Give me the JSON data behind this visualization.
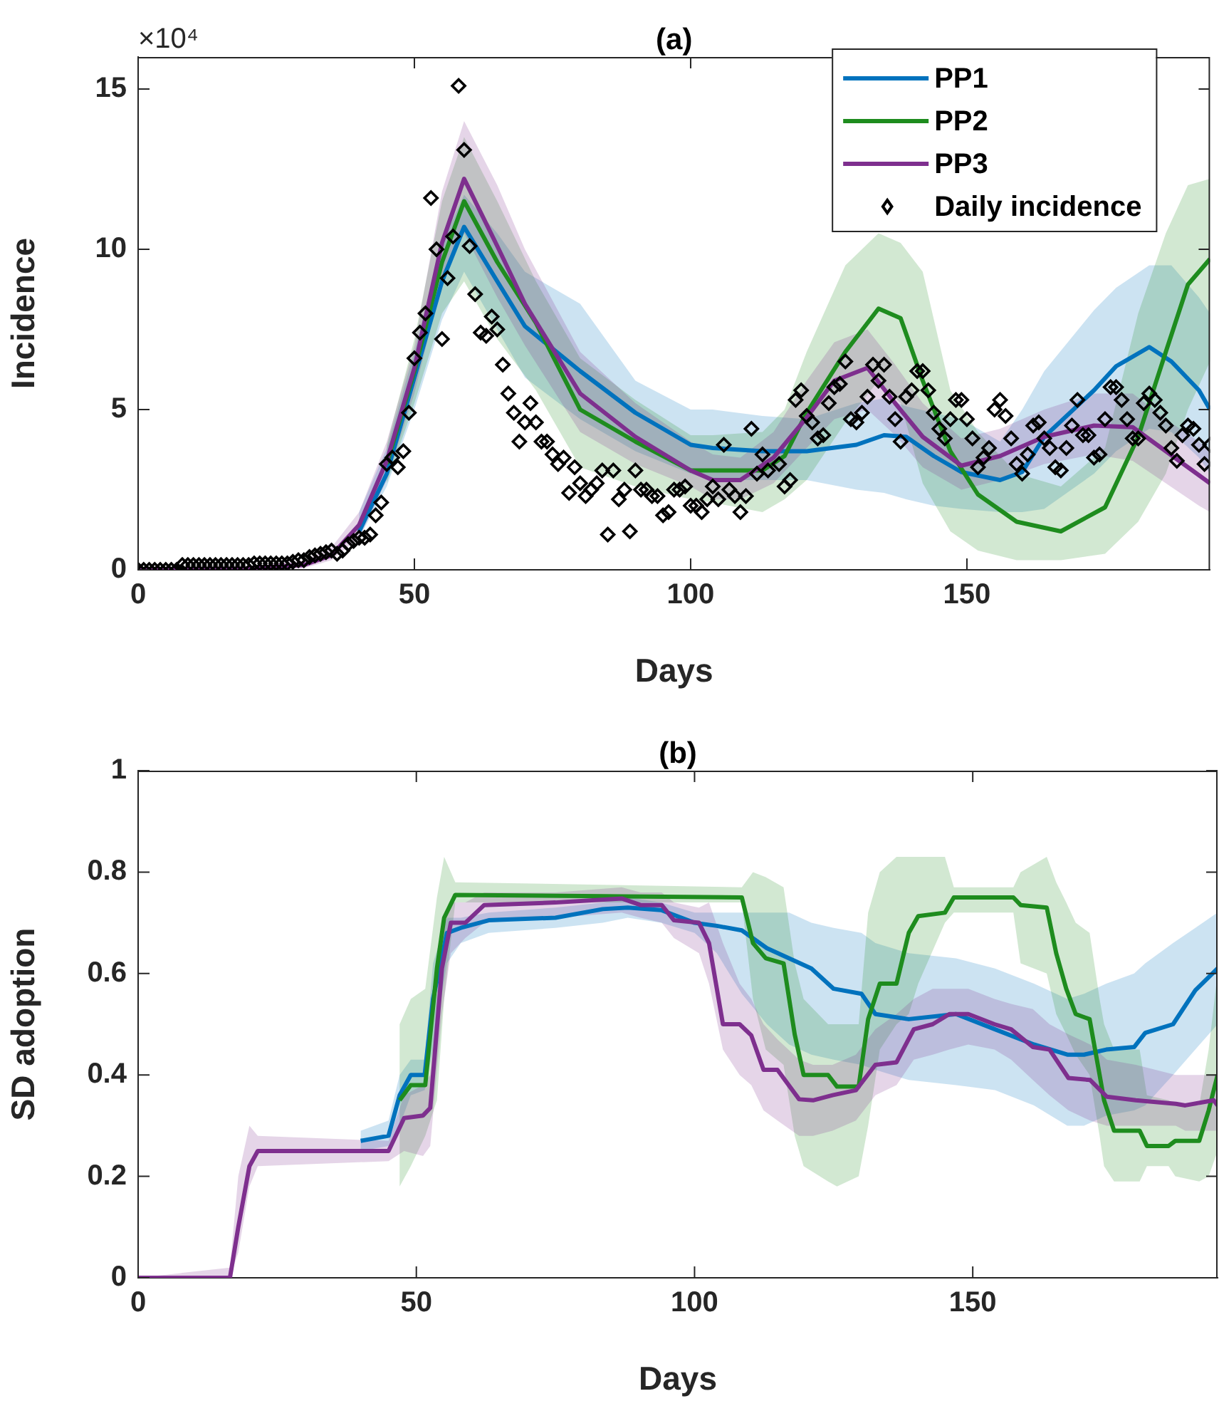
{
  "chart_data": [
    {
      "type": "line",
      "title": "(a)",
      "xlabel": "Days",
      "ylabel": "Incidence",
      "annotations": [
        "×10⁴"
      ],
      "legend": "top right",
      "xlim": [
        0,
        194
      ],
      "xticks": [
        0,
        50,
        100,
        150
      ],
      "ylim": [
        0,
        16
      ],
      "yticks": [
        0,
        5,
        10,
        15
      ],
      "series": [
        {
          "name": "PP1",
          "type": "line",
          "color": "#0072bd",
          "x": [
            40,
            45,
            50,
            55,
            59,
            65,
            70,
            80,
            90,
            100,
            104,
            113,
            121,
            130,
            135,
            139,
            144,
            149,
            156,
            160,
            164,
            173,
            177,
            183,
            187,
            192,
            194
          ],
          "values": [
            1.2,
            3.0,
            6.0,
            9.0,
            10.7,
            9.0,
            7.6,
            6.2,
            4.9,
            3.9,
            3.8,
            3.7,
            3.7,
            3.9,
            4.2,
            4.15,
            3.55,
            3.05,
            2.8,
            3.05,
            4.15,
            5.6,
            6.35,
            6.95,
            6.5,
            5.6,
            5.0
          ],
          "lower": [
            1.0,
            2.6,
            5.0,
            7.8,
            9.3,
            7.5,
            6.0,
            4.7,
            3.7,
            3.0,
            2.8,
            2.8,
            2.8,
            2.5,
            2.4,
            2.2,
            2.0,
            1.9,
            1.8,
            1.8,
            1.9,
            3.0,
            3.7,
            4.4,
            4.3,
            3.5,
            3.0
          ],
          "upper": [
            1.8,
            3.8,
            6.8,
            10.2,
            11.7,
            10.5,
            9.3,
            8.3,
            5.9,
            5.0,
            5.0,
            4.8,
            4.7,
            5.2,
            5.35,
            5.1,
            4.9,
            4.7,
            4.0,
            5.0,
            6.2,
            8.1,
            8.8,
            9.5,
            9.5,
            8.5,
            8.0
          ]
        },
        {
          "name": "PP2",
          "type": "line",
          "color": "#1e8c1e",
          "x": [
            45,
            50,
            55,
            59,
            65,
            72,
            80,
            90,
            100,
            104,
            113,
            117,
            121,
            128,
            134,
            138,
            142,
            147,
            152,
            159,
            167,
            175,
            181,
            186,
            190,
            194
          ],
          "values": [
            3.3,
            6.2,
            9.6,
            11.5,
            9.6,
            7.7,
            5.0,
            4.0,
            3.1,
            3.1,
            3.1,
            3.55,
            4.9,
            6.8,
            8.15,
            7.85,
            5.9,
            3.7,
            2.35,
            1.5,
            1.2,
            1.95,
            4.15,
            6.8,
            8.9,
            9.7
          ],
          "lower": [
            2.7,
            5.2,
            8.0,
            9.0,
            7.2,
            5.6,
            3.2,
            2.6,
            2.2,
            2.1,
            1.8,
            2.2,
            2.8,
            4.6,
            5.9,
            5.2,
            2.7,
            1.2,
            0.6,
            0.3,
            0.3,
            0.5,
            1.5,
            3.0,
            5.0,
            6.5
          ],
          "upper": [
            3.9,
            7.2,
            11.5,
            13.5,
            11.5,
            9.0,
            6.6,
            5.3,
            4.2,
            4.2,
            4.3,
            5.0,
            6.8,
            9.5,
            10.5,
            10.2,
            9.3,
            5.6,
            4.3,
            3.0,
            2.6,
            3.8,
            8.0,
            10.5,
            12.0,
            12.2
          ]
        },
        {
          "name": "PP3",
          "type": "line",
          "color": "#7e2f8e",
          "x": [
            0,
            20,
            30,
            35,
            40,
            45,
            50,
            55,
            59,
            65,
            70,
            80,
            90,
            100,
            104,
            109,
            115,
            121,
            126,
            132,
            137,
            142,
            149,
            156,
            164,
            173,
            180,
            186,
            192,
            194
          ],
          "values": [
            0,
            0.05,
            0.15,
            0.45,
            1.4,
            3.4,
            6.3,
            10.2,
            12.2,
            10.1,
            8.3,
            5.5,
            4.15,
            3.1,
            2.8,
            2.8,
            3.5,
            4.75,
            5.9,
            6.3,
            5.2,
            4.15,
            3.25,
            3.55,
            4.15,
            4.5,
            4.45,
            3.7,
            2.95,
            2.7
          ],
          "lower": [
            0,
            0,
            0.05,
            0.3,
            1.0,
            2.8,
            5.5,
            9.0,
            10.5,
            8.5,
            7.0,
            4.3,
            3.3,
            2.6,
            2.2,
            2.2,
            2.7,
            3.8,
            4.7,
            5.0,
            4.2,
            3.2,
            2.5,
            2.8,
            3.3,
            3.6,
            3.4,
            2.7,
            2.0,
            1.8
          ],
          "upper": [
            0.05,
            0.1,
            0.3,
            0.7,
            1.8,
            4.0,
            7.0,
            11.8,
            14.0,
            12.0,
            10.0,
            6.8,
            5.2,
            4.0,
            3.6,
            3.5,
            4.3,
            5.9,
            7.1,
            7.5,
            6.4,
            5.2,
            4.1,
            4.4,
            5.0,
            5.5,
            5.5,
            4.7,
            4.0,
            3.7
          ]
        },
        {
          "name": "Daily incidence",
          "type": "scatter",
          "marker": "diamond",
          "color": "#000000",
          "x": [
            0,
            1,
            2,
            3,
            4,
            5,
            6,
            7,
            8,
            9,
            10,
            11,
            12,
            13,
            14,
            15,
            16,
            17,
            18,
            19,
            20,
            21,
            22,
            23,
            24,
            25,
            26,
            27,
            28,
            29,
            30,
            31,
            32,
            33,
            34,
            35,
            36,
            37,
            38,
            39,
            40,
            41,
            42,
            43,
            44,
            45,
            46,
            47,
            48,
            49,
            50,
            51,
            52,
            53,
            54,
            55,
            56,
            57,
            58,
            59,
            60,
            61,
            62,
            63,
            64,
            65,
            66,
            67,
            68,
            69,
            70,
            71,
            72,
            73,
            74,
            75,
            76,
            77,
            78,
            79,
            80,
            81,
            82,
            83,
            84,
            85,
            86,
            87,
            88,
            89,
            90,
            91,
            92,
            93,
            94,
            95,
            96,
            97,
            98,
            99,
            100,
            101,
            102,
            103,
            104,
            105,
            106,
            107,
            108,
            109,
            110,
            111,
            112,
            113,
            114,
            116,
            117,
            118,
            119,
            120,
            121,
            122,
            123,
            124,
            125,
            126,
            127,
            128,
            129,
            130,
            131,
            132,
            133,
            134,
            135,
            136,
            137,
            138,
            139,
            140,
            141,
            142,
            143,
            144,
            145,
            146,
            147,
            148,
            149,
            150,
            151,
            152,
            153,
            154,
            155,
            156,
            157,
            158,
            159,
            160,
            161,
            162,
            163,
            164,
            165,
            166,
            167,
            168,
            169,
            170,
            171,
            172,
            173,
            174,
            175,
            176,
            177,
            178,
            179,
            180,
            181,
            182,
            183,
            184,
            185,
            186,
            187,
            188,
            189,
            190,
            191,
            192,
            193,
            194
          ],
          "values": [
            0,
            0,
            0,
            0,
            0,
            0,
            0,
            0,
            0.15,
            0.15,
            0.15,
            0.15,
            0.15,
            0.15,
            0.15,
            0.15,
            0.15,
            0.15,
            0.15,
            0.15,
            0.15,
            0.2,
            0.2,
            0.2,
            0.2,
            0.2,
            0.2,
            0.2,
            0.25,
            0.3,
            0.3,
            0.4,
            0.45,
            0.5,
            0.55,
            0.6,
            0.5,
            0.6,
            0.8,
            0.9,
            1.0,
            1.0,
            1.1,
            1.7,
            2.1,
            3.3,
            3.5,
            3.2,
            3.7,
            4.9,
            6.6,
            7.4,
            8.0,
            11.6,
            10.0,
            7.2,
            9.1,
            10.4,
            15.1,
            13.1,
            10.1,
            8.6,
            7.4,
            7.3,
            7.9,
            7.5,
            6.4,
            5.5,
            4.9,
            4.0,
            4.6,
            5.2,
            4.6,
            4.0,
            4.0,
            3.6,
            3.3,
            3.5,
            2.4,
            3.2,
            2.7,
            2.3,
            2.5,
            2.7,
            3.1,
            1.1,
            3.1,
            2.2,
            2.5,
            1.2,
            3.1,
            2.5,
            2.5,
            2.3,
            2.3,
            1.7,
            1.8,
            2.5,
            2.5,
            2.6,
            2.0,
            2.0,
            1.8,
            2.2,
            2.6,
            2.2,
            3.9,
            2.5,
            2.3,
            1.8,
            2.3,
            4.4,
            3.0,
            3.6,
            3.1,
            3.3,
            2.6,
            2.8,
            5.3,
            5.6,
            4.8,
            4.6,
            4.1,
            4.2,
            5.2,
            5.7,
            5.8,
            6.5,
            4.7,
            4.6,
            4.9,
            5.4,
            6.4,
            5.9,
            6.4,
            5.4,
            4.7,
            4.0,
            5.4,
            5.6,
            6.2,
            6.2,
            5.6,
            4.9,
            4.4,
            4.1,
            4.7,
            5.3,
            5.3,
            4.7,
            4.1,
            3.2,
            3.5,
            3.8,
            5.0,
            5.3,
            4.8,
            4.1,
            3.3,
            3.0,
            3.6,
            4.5,
            4.6,
            4.1,
            3.8,
            3.2,
            3.1,
            3.8,
            4.5,
            5.3,
            4.2,
            4.2,
            3.5,
            3.6,
            4.7,
            5.7,
            5.7,
            5.3,
            4.7,
            4.1,
            4.1,
            5.2,
            5.5,
            5.3,
            4.9,
            4.5,
            3.8,
            3.4,
            4.2,
            4.5,
            4.4,
            3.9,
            3.3,
            3.9
          ]
        }
      ]
    },
    {
      "type": "line",
      "title": "(b)",
      "xlabel": "Days",
      "ylabel": "SD adoption",
      "xlim": [
        0,
        194
      ],
      "xticks": [
        0,
        50,
        100,
        150
      ],
      "ylim": [
        0,
        1
      ],
      "yticks": [
        0,
        0.2,
        0.4,
        0.6,
        0.8,
        1
      ],
      "series": [
        {
          "type": "line",
          "color": "#0072bd",
          "x": [
            40,
            45,
            47,
            49,
            51.5,
            53,
            55.5,
            58,
            63,
            75,
            83.5,
            88,
            94,
            100,
            104,
            108.5,
            113,
            117,
            121,
            125,
            130,
            132.5,
            138.5,
            147,
            154,
            161,
            167,
            170,
            174,
            179,
            181,
            186,
            190,
            194
          ],
          "values": [
            0.27,
            0.28,
            0.36,
            0.4,
            0.4,
            0.55,
            0.68,
            0.69,
            0.705,
            0.71,
            0.727,
            0.73,
            0.725,
            0.7,
            0.694,
            0.685,
            0.65,
            0.63,
            0.61,
            0.57,
            0.56,
            0.52,
            0.51,
            0.52,
            0.49,
            0.46,
            0.44,
            0.44,
            0.45,
            0.455,
            0.483,
            0.5,
            0.567,
            0.61
          ],
          "lower": [
            0.25,
            0.26,
            0.3,
            0.36,
            0.37,
            0.45,
            0.62,
            0.66,
            0.68,
            0.69,
            0.7,
            0.71,
            0.7,
            0.68,
            0.64,
            0.56,
            0.5,
            0.46,
            0.44,
            0.43,
            0.42,
            0.41,
            0.39,
            0.38,
            0.37,
            0.34,
            0.3,
            0.3,
            0.32,
            0.33,
            0.34,
            0.4,
            0.45,
            0.5
          ],
          "upper": [
            0.29,
            0.31,
            0.4,
            0.43,
            0.43,
            0.62,
            0.71,
            0.71,
            0.72,
            0.73,
            0.74,
            0.75,
            0.74,
            0.72,
            0.72,
            0.72,
            0.72,
            0.72,
            0.7,
            0.69,
            0.68,
            0.66,
            0.64,
            0.63,
            0.61,
            0.58,
            0.55,
            0.56,
            0.58,
            0.6,
            0.62,
            0.66,
            0.69,
            0.72
          ]
        },
        {
          "type": "line",
          "color": "#1e8c1e",
          "x": [
            47,
            49,
            51.6,
            53.7,
            55,
            57,
            108.5,
            110.5,
            112.8,
            116,
            118,
            119.6,
            124,
            125.6,
            129.5,
            131.2,
            133.3,
            136.3,
            138.5,
            140.2,
            145,
            146.6,
            157.3,
            158.6,
            163.3,
            165,
            166.8,
            168.5,
            171,
            172.8,
            173.6,
            175.4,
            180,
            181.3,
            185.2,
            186.4,
            190.7,
            192.4,
            194
          ],
          "values": [
            0.35,
            0.38,
            0.38,
            0.61,
            0.71,
            0.755,
            0.75,
            0.66,
            0.63,
            0.62,
            0.48,
            0.4,
            0.4,
            0.377,
            0.377,
            0.51,
            0.58,
            0.58,
            0.68,
            0.713,
            0.72,
            0.75,
            0.75,
            0.735,
            0.73,
            0.64,
            0.57,
            0.52,
            0.51,
            0.4,
            0.35,
            0.29,
            0.29,
            0.26,
            0.26,
            0.27,
            0.27,
            0.33,
            0.4
          ],
          "lower": [
            0.18,
            0.22,
            0.28,
            0.35,
            0.55,
            0.74,
            0.74,
            0.55,
            0.45,
            0.42,
            0.28,
            0.22,
            0.19,
            0.18,
            0.2,
            0.3,
            0.45,
            0.5,
            0.52,
            0.58,
            0.7,
            0.72,
            0.72,
            0.62,
            0.6,
            0.52,
            0.48,
            0.44,
            0.4,
            0.28,
            0.22,
            0.19,
            0.19,
            0.22,
            0.22,
            0.2,
            0.19,
            0.2,
            0.25
          ],
          "upper": [
            0.5,
            0.55,
            0.57,
            0.75,
            0.83,
            0.78,
            0.77,
            0.8,
            0.79,
            0.77,
            0.62,
            0.55,
            0.5,
            0.5,
            0.5,
            0.72,
            0.8,
            0.83,
            0.83,
            0.83,
            0.83,
            0.77,
            0.77,
            0.8,
            0.83,
            0.78,
            0.74,
            0.7,
            0.68,
            0.55,
            0.5,
            0.45,
            0.45,
            0.36,
            0.35,
            0.34,
            0.34,
            0.45,
            0.6
          ]
        },
        {
          "type": "line",
          "color": "#7e2f8e",
          "x": [
            0,
            16.5,
            18,
            20,
            21.5,
            45,
            47.8,
            51.2,
            52.5,
            54.6,
            56.2,
            58.8,
            62.2,
            75,
            86.9,
            90.3,
            94.1,
            96.3,
            100.8,
            102.6,
            105.1,
            108.1,
            110.2,
            112.4,
            114.9,
            118.8,
            121.3,
            124.8,
            129,
            132.5,
            136.3,
            139.4,
            142.8,
            145.8,
            149.2,
            153.9,
            156.9,
            160.8,
            163.8,
            167.2,
            171.1,
            174.1,
            179.3,
            186.5,
            188.2,
            193.3,
            194
          ],
          "values": [
            0,
            0,
            0.1,
            0.22,
            0.25,
            0.25,
            0.315,
            0.32,
            0.335,
            0.61,
            0.7,
            0.7,
            0.735,
            0.74,
            0.748,
            0.735,
            0.735,
            0.705,
            0.7,
            0.66,
            0.5,
            0.5,
            0.478,
            0.41,
            0.41,
            0.352,
            0.35,
            0.36,
            0.37,
            0.42,
            0.425,
            0.49,
            0.5,
            0.52,
            0.52,
            0.5,
            0.49,
            0.455,
            0.45,
            0.394,
            0.39,
            0.357,
            0.35,
            0.343,
            0.34,
            0.35,
            0.34
          ],
          "lower": [
            0,
            0,
            0.05,
            0.18,
            0.22,
            0.23,
            0.25,
            0.24,
            0.26,
            0.52,
            0.64,
            0.67,
            0.7,
            0.71,
            0.72,
            0.71,
            0.7,
            0.67,
            0.64,
            0.58,
            0.45,
            0.4,
            0.38,
            0.33,
            0.31,
            0.28,
            0.28,
            0.29,
            0.31,
            0.36,
            0.38,
            0.43,
            0.44,
            0.45,
            0.46,
            0.45,
            0.43,
            0.39,
            0.36,
            0.33,
            0.31,
            0.3,
            0.3,
            0.3,
            0.29,
            0.29,
            0.29
          ],
          "upper": [
            0,
            0.02,
            0.2,
            0.3,
            0.28,
            0.27,
            0.36,
            0.38,
            0.4,
            0.68,
            0.74,
            0.74,
            0.76,
            0.76,
            0.77,
            0.76,
            0.76,
            0.74,
            0.73,
            0.74,
            0.66,
            0.58,
            0.55,
            0.5,
            0.47,
            0.43,
            0.42,
            0.42,
            0.44,
            0.49,
            0.52,
            0.55,
            0.57,
            0.57,
            0.57,
            0.55,
            0.54,
            0.53,
            0.5,
            0.48,
            0.46,
            0.43,
            0.42,
            0.4,
            0.4,
            0.4,
            0.4
          ]
        }
      ]
    }
  ]
}
